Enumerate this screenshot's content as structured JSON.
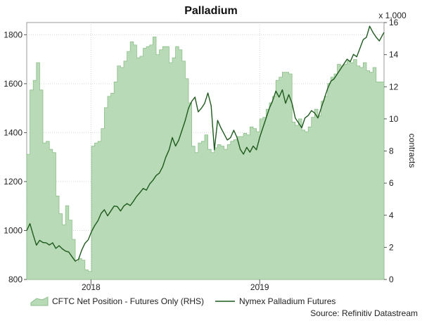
{
  "chart_data": {
    "type": "area",
    "title": "Palladium",
    "right_axis_multiplier": "x 1,000",
    "right_axis_label": "contracts",
    "source": "Source: Refinitiv Datastream",
    "left_axis": {
      "range": [
        800,
        1850
      ],
      "ticks": [
        800,
        1000,
        1200,
        1400,
        1600,
        1800
      ]
    },
    "right_axis": {
      "range": [
        0,
        16
      ],
      "ticks": [
        0,
        2,
        4,
        6,
        8,
        10,
        12,
        14,
        16
      ]
    },
    "x_axis": {
      "range": [
        "2017-08-15",
        "2019-09-27"
      ],
      "ticks": [
        {
          "label": "2018",
          "date": "2018-01-01"
        },
        {
          "label": "2019",
          "date": "2019-01-01"
        }
      ]
    },
    "legend_placement": "bottom",
    "grid": true,
    "series": [
      {
        "name": "CFTC Net Position - Futures Only (RHS)",
        "type": "area",
        "axis": "right",
        "color": "#b8dab6",
        "stroke": "#8cbf89",
        "points": [
          [
            "2017-08-15",
            7.8
          ],
          [
            "2017-08-22",
            11.8
          ],
          [
            "2017-08-29",
            12.4
          ],
          [
            "2017-09-05",
            13.5
          ],
          [
            "2017-09-12",
            11.8
          ],
          [
            "2017-09-19",
            8.5
          ],
          [
            "2017-09-26",
            8.6
          ],
          [
            "2017-10-03",
            8.1
          ],
          [
            "2017-10-10",
            7.9
          ],
          [
            "2017-10-17",
            5.2
          ],
          [
            "2017-10-24",
            4.1
          ],
          [
            "2017-10-31",
            3.4
          ],
          [
            "2017-11-07",
            4.6
          ],
          [
            "2017-11-14",
            3.7
          ],
          [
            "2017-11-21",
            2.5
          ],
          [
            "2017-11-28",
            1.1
          ],
          [
            "2017-12-05",
            1.3
          ],
          [
            "2017-12-12",
            1.2
          ],
          [
            "2017-12-19",
            0.6
          ],
          [
            "2017-12-26",
            0.5
          ],
          [
            "2018-01-02",
            8.3
          ],
          [
            "2018-01-09",
            8.5
          ],
          [
            "2018-01-16",
            8.6
          ],
          [
            "2018-01-23",
            9.4
          ],
          [
            "2018-01-30",
            10.7
          ],
          [
            "2018-02-06",
            11.4
          ],
          [
            "2018-02-13",
            11.6
          ],
          [
            "2018-02-20",
            12.3
          ],
          [
            "2018-02-27",
            13.3
          ],
          [
            "2018-03-06",
            13.2
          ],
          [
            "2018-03-13",
            13.6
          ],
          [
            "2018-03-20",
            14.2
          ],
          [
            "2018-03-27",
            14.8
          ],
          [
            "2018-04-03",
            14.6
          ],
          [
            "2018-04-10",
            13.8
          ],
          [
            "2018-04-17",
            13.9
          ],
          [
            "2018-04-24",
            14.4
          ],
          [
            "2018-05-01",
            14.5
          ],
          [
            "2018-05-08",
            14.6
          ],
          [
            "2018-05-15",
            15.1
          ],
          [
            "2018-05-22",
            14.0
          ],
          [
            "2018-05-29",
            14.3
          ],
          [
            "2018-06-05",
            14.5
          ],
          [
            "2018-06-12",
            14.5
          ],
          [
            "2018-06-19",
            13.5
          ],
          [
            "2018-06-26",
            13.8
          ],
          [
            "2018-07-03",
            14.5
          ],
          [
            "2018-07-10",
            14.3
          ],
          [
            "2018-07-17",
            13.6
          ],
          [
            "2018-07-24",
            12.5
          ],
          [
            "2018-07-31",
            11.0
          ],
          [
            "2018-08-07",
            8.3
          ],
          [
            "2018-08-14",
            7.9
          ],
          [
            "2018-08-21",
            8.5
          ],
          [
            "2018-08-28",
            8.6
          ],
          [
            "2018-09-04",
            9.0
          ],
          [
            "2018-09-11",
            8.1
          ],
          [
            "2018-09-18",
            7.9
          ],
          [
            "2018-09-25",
            8.2
          ],
          [
            "2018-10-02",
            8.4
          ],
          [
            "2018-10-09",
            8.3
          ],
          [
            "2018-10-16",
            8.1
          ],
          [
            "2018-10-23",
            8.4
          ],
          [
            "2018-10-30",
            8.6
          ],
          [
            "2018-11-06",
            8.7
          ],
          [
            "2018-11-13",
            8.9
          ],
          [
            "2018-11-20",
            8.9
          ],
          [
            "2018-11-27",
            9.1
          ],
          [
            "2018-12-04",
            9.0
          ],
          [
            "2018-12-11",
            9.5
          ],
          [
            "2018-12-18",
            9.4
          ],
          [
            "2018-12-25",
            9.2
          ],
          [
            "2019-01-01",
            10.0
          ],
          [
            "2019-01-08",
            10.1
          ],
          [
            "2019-01-15",
            10.6
          ],
          [
            "2019-01-22",
            11.0
          ],
          [
            "2019-01-29",
            11.4
          ],
          [
            "2019-02-05",
            12.4
          ],
          [
            "2019-02-12",
            12.6
          ],
          [
            "2019-02-19",
            12.9
          ],
          [
            "2019-02-26",
            12.9
          ],
          [
            "2019-03-05",
            12.8
          ],
          [
            "2019-03-12",
            9.8
          ],
          [
            "2019-03-19",
            9.6
          ],
          [
            "2019-03-26",
            10.0
          ],
          [
            "2019-04-02",
            9.3
          ],
          [
            "2019-04-09",
            9.2
          ],
          [
            "2019-04-16",
            9.5
          ],
          [
            "2019-04-23",
            10.1
          ],
          [
            "2019-04-30",
            10.6
          ],
          [
            "2019-05-07",
            10.2
          ],
          [
            "2019-05-14",
            11.1
          ],
          [
            "2019-05-21",
            11.4
          ],
          [
            "2019-05-28",
            12.2
          ],
          [
            "2019-06-04",
            12.6
          ],
          [
            "2019-06-11",
            12.8
          ],
          [
            "2019-06-18",
            13.4
          ],
          [
            "2019-06-25",
            13.3
          ],
          [
            "2019-07-02",
            13.4
          ],
          [
            "2019-07-09",
            13.6
          ],
          [
            "2019-07-16",
            13.5
          ],
          [
            "2019-07-23",
            13.7
          ],
          [
            "2019-07-30",
            13.3
          ],
          [
            "2019-08-06",
            13.2
          ],
          [
            "2019-08-13",
            13.5
          ],
          [
            "2019-08-20",
            13.0
          ],
          [
            "2019-08-27",
            12.9
          ],
          [
            "2019-09-03",
            13.2
          ],
          [
            "2019-09-10",
            12.3
          ],
          [
            "2019-09-17",
            12.3
          ],
          [
            "2019-09-27",
            12.2
          ]
        ]
      },
      {
        "name": "Nymex Palladium Futures",
        "type": "line",
        "axis": "left",
        "color": "#1e5a1e",
        "points": [
          [
            "2017-08-15",
            1000
          ],
          [
            "2017-08-22",
            1028
          ],
          [
            "2017-08-29",
            982
          ],
          [
            "2017-09-05",
            940
          ],
          [
            "2017-09-12",
            960
          ],
          [
            "2017-09-19",
            951
          ],
          [
            "2017-09-26",
            950
          ],
          [
            "2017-10-03",
            941
          ],
          [
            "2017-10-10",
            950
          ],
          [
            "2017-10-17",
            927
          ],
          [
            "2017-10-24",
            938
          ],
          [
            "2017-10-31",
            925
          ],
          [
            "2017-11-07",
            916
          ],
          [
            "2017-11-14",
            912
          ],
          [
            "2017-11-21",
            893
          ],
          [
            "2017-11-28",
            875
          ],
          [
            "2017-12-05",
            882
          ],
          [
            "2017-12-12",
            920
          ],
          [
            "2017-12-19",
            948
          ],
          [
            "2017-12-26",
            962
          ],
          [
            "2018-01-02",
            995
          ],
          [
            "2018-01-09",
            1020
          ],
          [
            "2018-01-16",
            1040
          ],
          [
            "2018-01-23",
            1070
          ],
          [
            "2018-01-30",
            1085
          ],
          [
            "2018-02-06",
            1060
          ],
          [
            "2018-02-13",
            1080
          ],
          [
            "2018-02-20",
            1100
          ],
          [
            "2018-02-27",
            1098
          ],
          [
            "2018-03-06",
            1080
          ],
          [
            "2018-03-13",
            1100
          ],
          [
            "2018-03-20",
            1110
          ],
          [
            "2018-03-27",
            1102
          ],
          [
            "2018-04-03",
            1120
          ],
          [
            "2018-04-10",
            1140
          ],
          [
            "2018-04-17",
            1155
          ],
          [
            "2018-04-24",
            1172
          ],
          [
            "2018-05-01",
            1165
          ],
          [
            "2018-05-08",
            1190
          ],
          [
            "2018-05-15",
            1205
          ],
          [
            "2018-05-22",
            1225
          ],
          [
            "2018-05-29",
            1235
          ],
          [
            "2018-06-05",
            1260
          ],
          [
            "2018-06-12",
            1300
          ],
          [
            "2018-06-19",
            1330
          ],
          [
            "2018-06-26",
            1380
          ],
          [
            "2018-07-03",
            1345
          ],
          [
            "2018-07-10",
            1370
          ],
          [
            "2018-07-17",
            1410
          ],
          [
            "2018-07-24",
            1450
          ],
          [
            "2018-07-31",
            1500
          ],
          [
            "2018-08-07",
            1528
          ],
          [
            "2018-08-14",
            1545
          ],
          [
            "2018-08-21",
            1485
          ],
          [
            "2018-08-28",
            1500
          ],
          [
            "2018-09-04",
            1520
          ],
          [
            "2018-09-11",
            1562
          ],
          [
            "2018-09-18",
            1510
          ],
          [
            "2018-09-25",
            1330
          ],
          [
            "2018-10-02",
            1450
          ],
          [
            "2018-10-09",
            1420
          ],
          [
            "2018-10-16",
            1395
          ],
          [
            "2018-10-23",
            1370
          ],
          [
            "2018-10-30",
            1380
          ],
          [
            "2018-11-06",
            1410
          ],
          [
            "2018-11-13",
            1380
          ],
          [
            "2018-11-20",
            1332
          ],
          [
            "2018-11-27",
            1312
          ],
          [
            "2018-12-04",
            1340
          ],
          [
            "2018-12-11",
            1320
          ],
          [
            "2018-12-18",
            1345
          ],
          [
            "2018-12-25",
            1330
          ],
          [
            "2019-01-01",
            1380
          ],
          [
            "2019-01-08",
            1420
          ],
          [
            "2019-01-15",
            1460
          ],
          [
            "2019-01-22",
            1500
          ],
          [
            "2019-01-29",
            1530
          ],
          [
            "2019-02-05",
            1570
          ],
          [
            "2019-02-12",
            1545
          ],
          [
            "2019-02-19",
            1575
          ],
          [
            "2019-02-26",
            1520
          ],
          [
            "2019-03-05",
            1555
          ],
          [
            "2019-03-12",
            1520
          ],
          [
            "2019-03-19",
            1460
          ],
          [
            "2019-03-26",
            1440
          ],
          [
            "2019-04-02",
            1420
          ],
          [
            "2019-04-09",
            1460
          ],
          [
            "2019-04-16",
            1470
          ],
          [
            "2019-04-23",
            1490
          ],
          [
            "2019-04-30",
            1480
          ],
          [
            "2019-05-07",
            1460
          ],
          [
            "2019-05-14",
            1500
          ],
          [
            "2019-05-21",
            1540
          ],
          [
            "2019-05-28",
            1580
          ],
          [
            "2019-06-04",
            1610
          ],
          [
            "2019-06-11",
            1620
          ],
          [
            "2019-06-18",
            1640
          ],
          [
            "2019-06-25",
            1660
          ],
          [
            "2019-07-02",
            1680
          ],
          [
            "2019-07-09",
            1700
          ],
          [
            "2019-07-16",
            1690
          ],
          [
            "2019-07-23",
            1720
          ],
          [
            "2019-07-30",
            1710
          ],
          [
            "2019-08-06",
            1745
          ],
          [
            "2019-08-13",
            1780
          ],
          [
            "2019-08-20",
            1790
          ],
          [
            "2019-08-27",
            1835
          ],
          [
            "2019-09-03",
            1810
          ],
          [
            "2019-09-10",
            1790
          ],
          [
            "2019-09-17",
            1775
          ],
          [
            "2019-09-27",
            1810
          ]
        ]
      }
    ]
  }
}
